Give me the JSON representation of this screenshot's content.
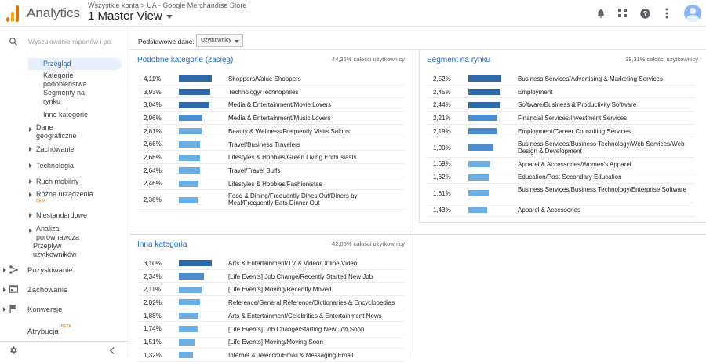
{
  "header": {
    "app_name": "Analytics",
    "account_path": "Wszystkie konta > UA - Google Merchandise Store",
    "view_name": "1 Master View",
    "icons": [
      "bell-icon",
      "apps-grid-icon",
      "help-icon",
      "more-vert-icon",
      "avatar"
    ]
  },
  "sidebar": {
    "search_placeholder": "Wyszukiwanie raportów i po",
    "items": [
      {
        "label": "Przegląd"
      },
      {
        "label": "Kategorie podobieństwa Segmenty na rynku"
      },
      {
        "label": "Inne kategorie"
      },
      {
        "label": "Dane geograficzne"
      },
      {
        "label": "Zachowanie"
      },
      {
        "label": "Technologia"
      },
      {
        "label": "Ruch mobilny"
      },
      {
        "label": "Różne urządzenia",
        "badge": "BETA"
      },
      {
        "label": "Niestandardowe"
      },
      {
        "label": "Analiza porównawcza"
      },
      {
        "label": "Przepływ użytkowników"
      }
    ],
    "sections": [
      {
        "label": "Pozyskiwanie",
        "icon": "acquisition-icon"
      },
      {
        "label": "Zachowanie",
        "icon": "behavior-icon"
      },
      {
        "label": "Konwersje",
        "icon": "flag-icon"
      },
      {
        "label": "Atrybucja",
        "badge": "BETA"
      }
    ]
  },
  "toolbar": {
    "primary_dim_label": "Podstawowe dane:",
    "primary_dim_value": "Użytkownicy"
  },
  "panels": {
    "affinity": {
      "title": "Podobne kategorie (zasięg)",
      "share": "44,36% całości użytkownicy",
      "rows": [
        {
          "value": "4,11%",
          "bar_fraction": 1.0,
          "label": "Shoppers/Value Shoppers"
        },
        {
          "value": "3,93%",
          "bar_fraction": 0.956,
          "label": "Technology/Technophiles"
        },
        {
          "value": "3,84%",
          "bar_fraction": 0.934,
          "label": "Media & Entertainment/Movie Lovers"
        },
        {
          "value": "2,96%",
          "bar_fraction": 0.72,
          "label": "Media & Entertainment/Music Lovers"
        },
        {
          "value": "2,81%",
          "bar_fraction": 0.684,
          "label": "Beauty & Wellness/Frequently Visits Salons"
        },
        {
          "value": "2,66%",
          "bar_fraction": 0.647,
          "label": "Travel/Business Travelers"
        },
        {
          "value": "2,66%",
          "bar_fraction": 0.647,
          "label": "Lifestyles & Hobbies/Green Living Enthusiasts"
        },
        {
          "value": "2,64%",
          "bar_fraction": 0.642,
          "label": "Travel/Travel Buffs"
        },
        {
          "value": "2,46%",
          "bar_fraction": 0.599,
          "label": "Lifestyles & Hobbies/Fashionistas"
        },
        {
          "value": "2,38%",
          "bar_fraction": 0.579,
          "label": "Food & Dining/Frequently Dines Out/Diners by Meal/Frequently Eats Dinner Out"
        }
      ]
    },
    "in_market": {
      "title": "Segment na rynku",
      "share": "38,31% całości użytkownicy",
      "rows": [
        {
          "value": "2,52%",
          "bar_fraction": 1.0,
          "label": "Business Services/Advertising & Marketing Services"
        },
        {
          "value": "2,45%",
          "bar_fraction": 0.972,
          "label": "Employment"
        },
        {
          "value": "2,44%",
          "bar_fraction": 0.968,
          "label": "Software/Business & Productivity Software"
        },
        {
          "value": "2,21%",
          "bar_fraction": 0.877,
          "label": "Financial Services/Investment Services"
        },
        {
          "value": "2,19%",
          "bar_fraction": 0.869,
          "label": "Employment/Career Consulting Services"
        },
        {
          "value": "1,90%",
          "bar_fraction": 0.754,
          "label": "Business Services/Business Technology/Web Services/Web Design & Development"
        },
        {
          "value": "1,69%",
          "bar_fraction": 0.671,
          "label": "Apparel & Accessories/Women's Apparel"
        },
        {
          "value": "1,62%",
          "bar_fraction": 0.643,
          "label": "Education/Post-Secondary Education"
        },
        {
          "value": "1,61%",
          "bar_fraction": 0.639,
          "label": "Business Services/Business Technology/Enterprise Software"
        },
        {
          "value": "1,43%",
          "bar_fraction": 0.567,
          "label": "Apparel & Accessories"
        }
      ]
    },
    "other": {
      "title": "Inna kategoria",
      "share": "42,05% całości użytkownicy",
      "rows": [
        {
          "value": "3,10%",
          "bar_fraction": 1.0,
          "label": "Arts & Entertainment/TV & Video/Online Video"
        },
        {
          "value": "2,34%",
          "bar_fraction": 0.755,
          "label": "[Life Events] Job Change/Recently Started New Job"
        },
        {
          "value": "2,11%",
          "bar_fraction": 0.681,
          "label": "[Life Events] Moving/Recently Moved"
        },
        {
          "value": "2,02%",
          "bar_fraction": 0.652,
          "label": "Reference/General Reference/Dictionaries & Encyclopedias"
        },
        {
          "value": "1,88%",
          "bar_fraction": 0.606,
          "label": "Arts & Entertainment/Celebrities & Entertainment News"
        },
        {
          "value": "1,74%",
          "bar_fraction": 0.561,
          "label": "[Life Events] Job Change/Starting New Job Soon"
        },
        {
          "value": "1,51%",
          "bar_fraction": 0.487,
          "label": "[Life Events] Moving/Moving Soon"
        },
        {
          "value": "1,32%",
          "bar_fraction": 0.426,
          "label": "Internet & Telecom/Email & Messaging/Email"
        }
      ]
    }
  },
  "colors": {
    "accent": "#1967d2",
    "bar_dark": "#2e6aa8",
    "bar_mid": "#4c8dcf",
    "bar_light": "#6aaee3",
    "beta": "#e37400"
  }
}
